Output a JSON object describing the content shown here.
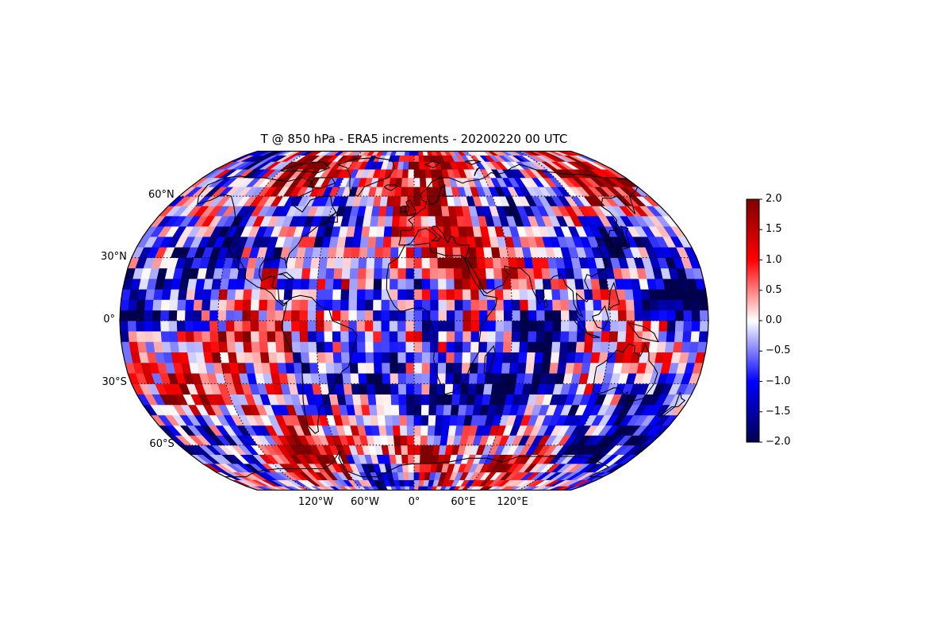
{
  "title": "T @ 850 hPa - ERA5 increments - 20200220 00 UTC",
  "map": {
    "projection": "Robinson",
    "central_longitude": 0,
    "gridlines": "dotted",
    "coastlines": true,
    "lat_labels": [
      {
        "lat": 60,
        "text": "60°N"
      },
      {
        "lat": 30,
        "text": "30°N"
      },
      {
        "lat": 0,
        "text": "0°"
      },
      {
        "lat": -30,
        "text": "30°S"
      },
      {
        "lat": -60,
        "text": "60°S"
      }
    ],
    "lon_labels": [
      {
        "lon": -120,
        "text": "120°W"
      },
      {
        "lon": -60,
        "text": "60°W"
      },
      {
        "lon": 0,
        "text": "0°"
      },
      {
        "lon": 60,
        "text": "60°E"
      },
      {
        "lon": 120,
        "text": "120°E"
      }
    ]
  },
  "colorbar": {
    "colormap": "seismic",
    "vmin": -2.0,
    "vmax": 2.0,
    "ticks": [
      "−2.0",
      "−1.5",
      "−1.0",
      "−0.5",
      "0.0",
      "0.5",
      "1.0",
      "1.5",
      "2.0"
    ],
    "tick_values": [
      -2.0,
      -1.5,
      -1.0,
      -0.5,
      0.0,
      0.5,
      1.0,
      1.5,
      2.0
    ],
    "colors": [
      "#00004c",
      "#0000ff",
      "#ffffff",
      "#ff0000",
      "#7f0000"
    ]
  },
  "field": {
    "variable": "T",
    "level": "850 hPa",
    "resolution_deg": 5,
    "anomalies": [
      {
        "lon": -160,
        "lat": 80,
        "v": -1.6
      },
      {
        "lon": -100,
        "lat": 72,
        "v": 1.8
      },
      {
        "lon": 20,
        "lat": 75,
        "v": 1.6
      },
      {
        "lon": 80,
        "lat": 62,
        "v": -1.5
      },
      {
        "lon": 140,
        "lat": 65,
        "v": 1.4
      },
      {
        "lon": 170,
        "lat": 78,
        "v": 1.5
      },
      {
        "lon": -60,
        "lat": 48,
        "v": -1.4
      },
      {
        "lon": -130,
        "lat": 35,
        "v": -1.5
      },
      {
        "lon": 35,
        "lat": 28,
        "v": 1.6
      },
      {
        "lon": 130,
        "lat": 35,
        "v": -1.4
      },
      {
        "lon": 160,
        "lat": 10,
        "v": -1.6
      },
      {
        "lon": -160,
        "lat": 5,
        "v": -1.4
      },
      {
        "lon": 90,
        "lat": -5,
        "v": -1.9
      },
      {
        "lon": 120,
        "lat": -10,
        "v": 1.4
      },
      {
        "lon": -160,
        "lat": -38,
        "v": 1.8
      },
      {
        "lon": -40,
        "lat": -25,
        "v": -1.7
      },
      {
        "lon": 20,
        "lat": -40,
        "v": -1.7
      },
      {
        "lon": 160,
        "lat": -40,
        "v": -1.8
      },
      {
        "lon": 60,
        "lat": -30,
        "v": -1.3
      },
      {
        "lon": -100,
        "lat": -10,
        "v": 1.2
      },
      {
        "lon": -80,
        "lat": -65,
        "v": 1.7
      },
      {
        "lon": 10,
        "lat": -68,
        "v": 1.9
      },
      {
        "lon": -20,
        "lat": -78,
        "v": -1.8
      },
      {
        "lon": 90,
        "lat": -75,
        "v": 1.4
      },
      {
        "lon": 140,
        "lat": -60,
        "v": -1.6
      },
      {
        "lon": -150,
        "lat": -55,
        "v": -1.5
      },
      {
        "lon": 0,
        "lat": 55,
        "v": 1.3
      },
      {
        "lon": -10,
        "lat": 10,
        "v": -0.8
      }
    ]
  }
}
